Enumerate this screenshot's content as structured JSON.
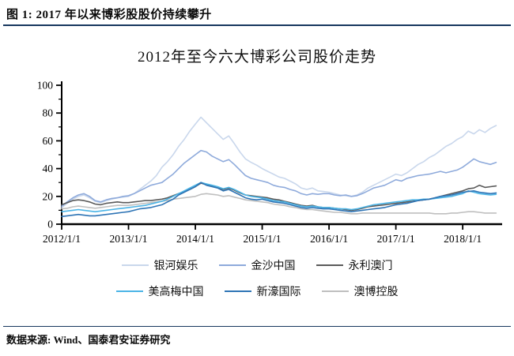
{
  "header": {
    "figure_title": "图 1: 2017 年以来博彩股股价持续攀升"
  },
  "footer": {
    "source": "数据来源: Wind、国泰君安证券研究"
  },
  "chart_data": {
    "type": "line",
    "title": "2012年至今六大博彩公司股价走势",
    "xlabel": "",
    "ylabel": "",
    "ylim": [
      0,
      100
    ],
    "y_ticks": [
      0,
      20,
      40,
      60,
      80,
      100
    ],
    "y_minor_step": 10,
    "xlim": [
      2012,
      2018.59
    ],
    "x_tick_labels": [
      "2012/1/1",
      "2013/1/1",
      "2014/1/1",
      "2015/1/1",
      "2016/1/1",
      "2017/1/1",
      "2018/1/1"
    ],
    "x_unit": "monthly points starting 2012-01",
    "grid": false,
    "legend_position": "bottom",
    "series": [
      {
        "name": "银河娱乐",
        "color": "#c9d7ec",
        "values": [
          12,
          15,
          18,
          20,
          21,
          19,
          16.5,
          15.5,
          17,
          18,
          19,
          19.5,
          20,
          22,
          25,
          28,
          31,
          35,
          41,
          45,
          50,
          56,
          61,
          67,
          72,
          77,
          73,
          69,
          65,
          61,
          63.5,
          58,
          52,
          47,
          44.5,
          42.5,
          40,
          38,
          36,
          34,
          33,
          31,
          29,
          26,
          25,
          26,
          24,
          23.5,
          23,
          22,
          21,
          20.5,
          20,
          21,
          23,
          26,
          28,
          30,
          32,
          34,
          36,
          35,
          37,
          40,
          43,
          45,
          48,
          50,
          53,
          56,
          58,
          61,
          63,
          67,
          65,
          68,
          66,
          69,
          71
        ]
      },
      {
        "name": "金沙中国",
        "color": "#8eaadb",
        "values": [
          13,
          16,
          19,
          21,
          22,
          20,
          17,
          16,
          17.5,
          18.5,
          19,
          20,
          20.5,
          22,
          24,
          26,
          28,
          29,
          30,
          33,
          36,
          40,
          44,
          47,
          50,
          53,
          52,
          49,
          47,
          45,
          46.5,
          43,
          39,
          35,
          33,
          32,
          31,
          30,
          28,
          27,
          26.5,
          25,
          24,
          22,
          21,
          22,
          21.5,
          22,
          22,
          21,
          20.5,
          21,
          20,
          20.5,
          22,
          24,
          26,
          27,
          28,
          30,
          32,
          31,
          33,
          34,
          35,
          35.5,
          36,
          37,
          38,
          37,
          38,
          39,
          41,
          44,
          47,
          45,
          44,
          43,
          44.5
        ]
      },
      {
        "name": "永利澳门",
        "color": "#5a5a5a",
        "values": [
          14,
          15.5,
          17,
          17.5,
          17,
          16,
          14.5,
          14,
          15,
          15.5,
          16,
          15.5,
          15.5,
          16,
          16.5,
          17,
          17,
          17.5,
          18,
          19,
          20.5,
          22,
          23.5,
          25,
          27,
          29.5,
          28.5,
          27.5,
          26.5,
          25,
          26,
          24.5,
          22.5,
          21,
          20.5,
          20,
          19.5,
          19,
          18,
          17.5,
          16.5,
          15.5,
          14.5,
          13.5,
          13,
          13.5,
          12.5,
          12,
          12,
          11.5,
          11,
          10.5,
          10,
          10.5,
          11.5,
          12.5,
          13,
          13.5,
          14,
          14.5,
          15,
          15.5,
          16,
          16.5,
          17,
          17.5,
          18,
          19,
          20,
          21,
          22,
          23,
          24,
          25.5,
          26,
          28,
          26.5,
          27,
          27.5
        ]
      },
      {
        "name": "美高梅中国",
        "color": "#4bb4e6",
        "values": [
          9,
          9.5,
          10,
          10.5,
          10,
          9.5,
          9,
          9.5,
          10,
          10.5,
          11,
          11.5,
          12,
          12.5,
          13,
          13.5,
          14.5,
          15.5,
          16.5,
          18,
          20,
          22,
          24,
          26,
          28,
          30,
          29,
          28,
          27,
          25.5,
          26.5,
          25,
          23,
          21,
          20,
          19.5,
          19,
          18,
          17,
          16.5,
          16,
          15,
          14,
          13,
          12.5,
          13,
          12.5,
          12,
          12,
          11.5,
          11,
          11,
          10.5,
          11,
          12,
          13,
          14,
          14.5,
          15,
          15.5,
          16,
          16.5,
          17,
          17.5,
          17.5,
          18,
          18,
          18.5,
          19,
          19.5,
          20,
          21,
          22,
          24,
          23,
          22,
          21.5,
          21,
          21.5
        ]
      },
      {
        "name": "新濠国际",
        "color": "#2e74b5",
        "values": [
          5.5,
          6,
          6.5,
          7,
          6.5,
          6,
          6,
          6.5,
          7,
          7.5,
          8,
          8.5,
          9,
          10,
          11,
          11.5,
          12,
          13,
          14,
          16,
          18,
          21,
          23,
          25,
          27,
          30,
          28,
          27,
          26,
          24,
          25,
          23,
          21,
          19,
          18,
          17.5,
          18,
          17,
          16,
          15.5,
          15,
          14,
          13,
          12,
          11.5,
          12,
          11.5,
          11,
          11,
          10.5,
          10,
          9.5,
          9,
          9.5,
          10,
          10.5,
          11,
          11.5,
          12,
          13,
          14,
          14.5,
          15,
          16,
          17,
          17.5,
          18,
          19,
          20,
          20.5,
          21,
          22,
          23,
          23.5,
          24,
          23,
          22.5,
          22,
          22.5
        ]
      },
      {
        "name": "澳博控股",
        "color": "#bfbfbf",
        "values": [
          11,
          11.5,
          12.5,
          13,
          12.5,
          12,
          11.5,
          12,
          12.5,
          13,
          13.5,
          13.5,
          13.5,
          14,
          14.5,
          15,
          15.5,
          16,
          16.5,
          17,
          18,
          18.5,
          19,
          19.5,
          20,
          21.5,
          22,
          21.5,
          21,
          20,
          20.5,
          19.5,
          18.5,
          17.5,
          17,
          16.5,
          16,
          15.5,
          14.5,
          14,
          13.5,
          12.5,
          12,
          11,
          10.5,
          10.5,
          10,
          9.5,
          9,
          8.5,
          8.5,
          8,
          7.5,
          7.5,
          8,
          8,
          8,
          8,
          8,
          8,
          8,
          8,
          8,
          8,
          8,
          8,
          8,
          7.5,
          7.5,
          7.5,
          8,
          8,
          8.5,
          9,
          9,
          8.5,
          8,
          8,
          8
        ]
      }
    ]
  }
}
